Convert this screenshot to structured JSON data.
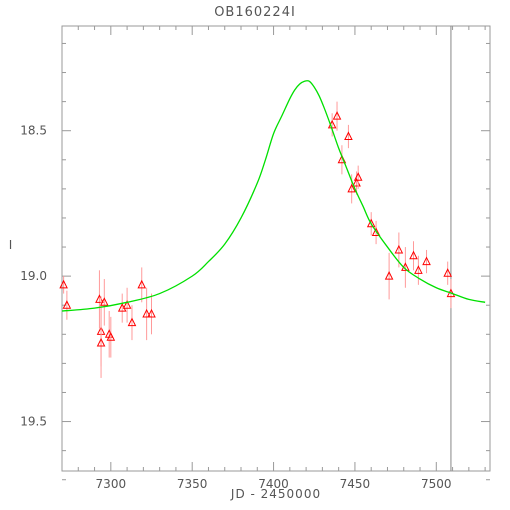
{
  "chart_data": {
    "type": "scatter",
    "title": "OB160224I",
    "xlabel": "JD - 2450000",
    "ylabel": "I",
    "xlim": [
      7270,
      7533
    ],
    "ylim": [
      19.67,
      18.14
    ],
    "y_inverted": true,
    "grid": false,
    "x_ticks": [
      "7300",
      "7350",
      "7400",
      "7450",
      "7500"
    ],
    "y_ticks": [
      "18.5",
      "19.0",
      "19.5"
    ],
    "vertical_line_x": 7509,
    "colors": {
      "points": "#ff0000",
      "errorbars": "#ff9a9a",
      "model": "#00e000",
      "frame": "#999999",
      "vline": "#888888"
    },
    "series": [
      {
        "kind": "points",
        "marker": "triangle-open",
        "points": [
          {
            "x": 7271,
            "y": 19.03,
            "err": 0.03
          },
          {
            "x": 7273,
            "y": 19.1,
            "err": 0.05
          },
          {
            "x": 7293,
            "y": 19.08,
            "err": 0.1
          },
          {
            "x": 7294,
            "y": 19.19,
            "err": 0.12
          },
          {
            "x": 7294,
            "y": 19.23,
            "err": 0.12
          },
          {
            "x": 7296,
            "y": 19.09,
            "err": 0.08
          },
          {
            "x": 7299,
            "y": 19.2,
            "err": 0.08
          },
          {
            "x": 7300,
            "y": 19.21,
            "err": 0.07
          },
          {
            "x": 7307,
            "y": 19.11,
            "err": 0.05
          },
          {
            "x": 7310,
            "y": 19.1,
            "err": 0.06
          },
          {
            "x": 7313,
            "y": 19.16,
            "err": 0.06
          },
          {
            "x": 7319,
            "y": 19.03,
            "err": 0.06
          },
          {
            "x": 7322,
            "y": 19.13,
            "err": 0.09
          },
          {
            "x": 7325,
            "y": 19.13,
            "err": 0.07
          },
          {
            "x": 7436,
            "y": 18.48,
            "err": 0.04
          },
          {
            "x": 7439,
            "y": 18.45,
            "err": 0.05
          },
          {
            "x": 7442,
            "y": 18.6,
            "err": 0.05
          },
          {
            "x": 7446,
            "y": 18.52,
            "err": 0.04
          },
          {
            "x": 7448,
            "y": 18.7,
            "err": 0.05
          },
          {
            "x": 7451,
            "y": 18.68,
            "err": 0.04
          },
          {
            "x": 7452,
            "y": 18.66,
            "err": 0.04
          },
          {
            "x": 7460,
            "y": 18.82,
            "err": 0.04
          },
          {
            "x": 7463,
            "y": 18.85,
            "err": 0.04
          },
          {
            "x": 7471,
            "y": 19.0,
            "err": 0.08
          },
          {
            "x": 7477,
            "y": 18.91,
            "err": 0.06
          },
          {
            "x": 7481,
            "y": 18.97,
            "err": 0.07
          },
          {
            "x": 7486,
            "y": 18.93,
            "err": 0.05
          },
          {
            "x": 7489,
            "y": 18.98,
            "err": 0.05
          },
          {
            "x": 7494,
            "y": 18.95,
            "err": 0.04
          },
          {
            "x": 7507,
            "y": 18.99,
            "err": 0.04
          },
          {
            "x": 7509,
            "y": 19.06,
            "err": 0.05
          }
        ]
      },
      {
        "kind": "line",
        "x": [
          7270,
          7290,
          7310,
          7330,
          7350,
          7360,
          7370,
          7380,
          7390,
          7395,
          7400,
          7405,
          7410,
          7413,
          7416,
          7419,
          7422,
          7425,
          7428,
          7431,
          7435,
          7440,
          7445,
          7450,
          7455,
          7460,
          7470,
          7480,
          7490,
          7500,
          7510,
          7520,
          7530
        ],
        "y": [
          19.12,
          19.11,
          19.09,
          19.06,
          19.0,
          18.95,
          18.89,
          18.8,
          18.68,
          18.6,
          18.51,
          18.45,
          18.39,
          18.36,
          18.34,
          18.33,
          18.33,
          18.35,
          18.38,
          18.42,
          18.48,
          18.56,
          18.63,
          18.7,
          18.76,
          18.82,
          18.9,
          18.97,
          19.01,
          19.04,
          19.06,
          19.08,
          19.09
        ]
      }
    ]
  }
}
